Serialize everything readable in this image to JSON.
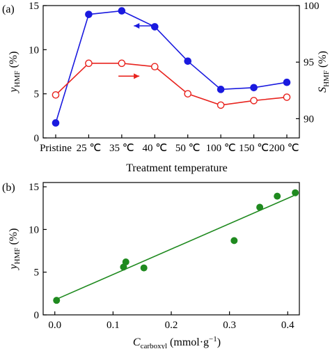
{
  "chart_data": [
    {
      "panel": "(a)",
      "type": "line",
      "xlabel": "Treatment temperature",
      "categories": [
        "Pristine",
        "25 ℃",
        "35 ℃",
        "40 ℃",
        "50 ℃",
        "100 ℃",
        "150 ℃",
        "200 ℃"
      ],
      "ylabel_left": {
        "main": "y",
        "sub": "HMF",
        "unit": " (%)"
      },
      "ylabel_right": {
        "main": "S",
        "sub": "HMF",
        "unit": " (%)"
      },
      "ylim_left": [
        0,
        15
      ],
      "ylim_right": [
        88.3,
        100
      ],
      "yticks_left": [
        0,
        5,
        10,
        15
      ],
      "yticks_right": [
        90,
        95,
        100
      ],
      "series": [
        {
          "axis": "left",
          "color": "#1a1adf",
          "marker": "filled",
          "values": [
            1.7,
            14.0,
            14.4,
            12.6,
            8.7,
            5.5,
            5.7,
            6.3
          ]
        },
        {
          "axis": "right",
          "color": "#e8231e",
          "marker": "open",
          "values": [
            92.1,
            94.9,
            94.9,
            94.6,
            92.2,
            91.2,
            91.6,
            91.9
          ]
        }
      ],
      "arrows": [
        {
          "series": 0,
          "direction": "left",
          "x": 3.0,
          "y": 12.7
        },
        {
          "series": 1,
          "direction": "right",
          "x": 1.9,
          "y": 7.0
        }
      ]
    },
    {
      "panel": "(b)",
      "type": "scatter",
      "xlabel": {
        "main": "C",
        "sub": "carboxyl",
        "unit": " (mmol·g",
        "sup": "−1",
        "close": ")"
      },
      "ylabel": {
        "main": "y",
        "sub": "HMF",
        "unit": " (%)"
      },
      "xlim": [
        -0.02,
        0.42
      ],
      "ylim": [
        0,
        15.5
      ],
      "xticks": [
        0.0,
        0.1,
        0.2,
        0.3,
        0.4
      ],
      "yticks": [
        0,
        5,
        10,
        15
      ],
      "color": "#1f8a1f",
      "points": [
        {
          "x": 0.003,
          "y": 1.7
        },
        {
          "x": 0.118,
          "y": 5.6
        },
        {
          "x": 0.122,
          "y": 6.2
        },
        {
          "x": 0.153,
          "y": 5.5
        },
        {
          "x": 0.308,
          "y": 8.7
        },
        {
          "x": 0.352,
          "y": 12.6
        },
        {
          "x": 0.382,
          "y": 13.9
        },
        {
          "x": 0.413,
          "y": 14.3
        }
      ],
      "fit": {
        "x0": 0.0,
        "y0": 1.75,
        "x1": 0.41,
        "y1": 13.95
      }
    }
  ]
}
